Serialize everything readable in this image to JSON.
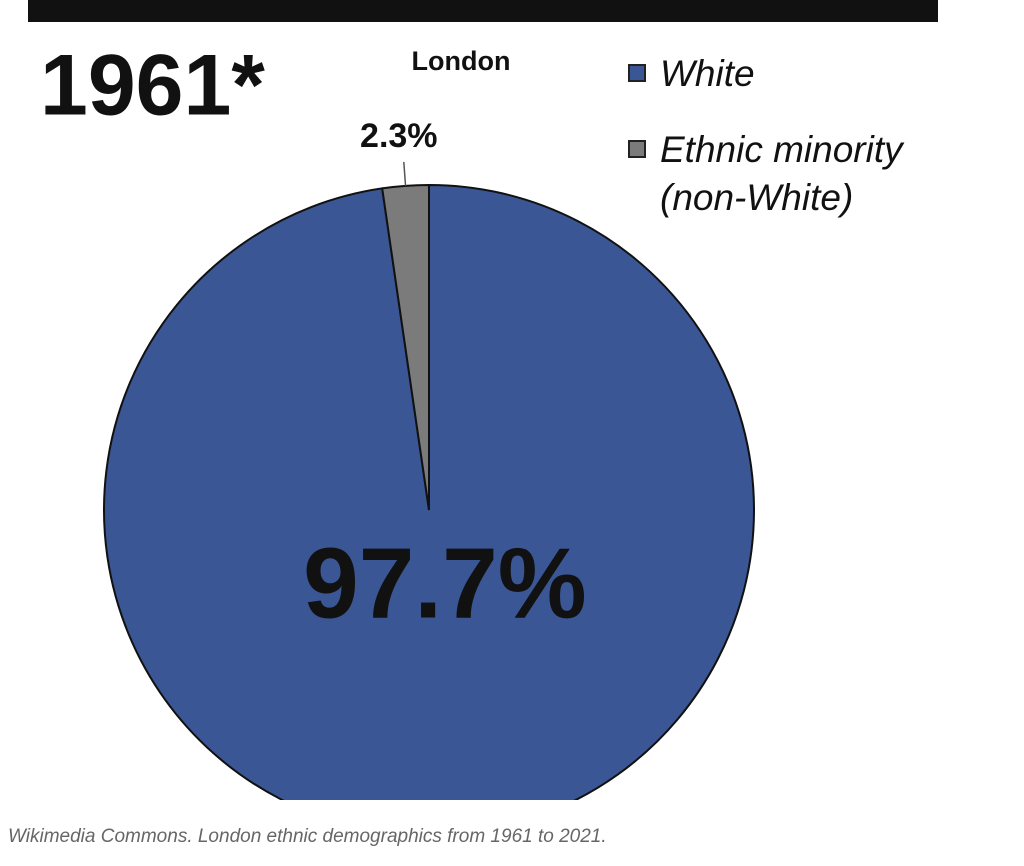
{
  "chart_data": {
    "type": "pie",
    "title": "1961*",
    "subtitle": "London",
    "categories": [
      "White",
      "Ethnic minority (non-White)"
    ],
    "values": [
      97.7,
      2.3
    ],
    "value_labels": [
      "97.7%",
      "2.3%"
    ],
    "colors": [
      "#3b5694",
      "#7b7b7b"
    ]
  },
  "caption": "Wikimedia Commons. London ethnic demographics from 1961 to 2021."
}
